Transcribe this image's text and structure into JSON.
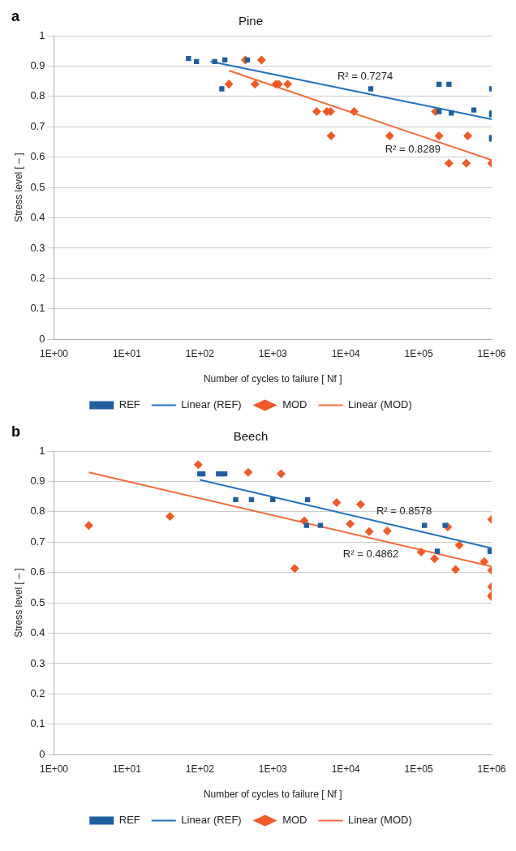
{
  "chart_data": [
    {
      "type": "scatter",
      "title": "Pine",
      "xlabel": "Number of cycles to failure [ Nf ]",
      "ylabel": "Stress level [ – ]",
      "log": "x",
      "grid": "y",
      "legend": "bottom",
      "xlim": [
        1,
        1000000
      ],
      "xticks": [
        {
          "value": 1,
          "label": "1E+00"
        },
        {
          "value": 10,
          "label": "1E+01"
        },
        {
          "value": 100,
          "label": "1E+02"
        },
        {
          "value": 1000,
          "label": "1E+03"
        },
        {
          "value": 10000,
          "label": "1E+04"
        },
        {
          "value": 100000,
          "label": "1E+05"
        },
        {
          "value": 1000000,
          "label": "1E+06"
        }
      ],
      "ylim": [
        0,
        1
      ],
      "yticks": [
        0,
        0.1,
        0.2,
        0.3,
        0.4,
        0.5,
        0.6,
        0.7,
        0.8,
        0.9,
        1
      ],
      "annotations": [
        "a",
        "R² = 0.7274",
        "R² = 0.8289"
      ],
      "series": [
        {
          "name": "REF",
          "marker": "square",
          "color": "#1f5fa0",
          "x": [
            70,
            90,
            160,
            200,
            220,
            450,
            22000,
            190000,
            260000,
            190000,
            280000,
            570000,
            1000000,
            1000000,
            1000000,
            1000000,
            1000000
          ],
          "values": [
            0.925,
            0.915,
            0.915,
            0.825,
            0.92,
            0.92,
            0.825,
            0.84,
            0.84,
            0.75,
            0.745,
            0.755,
            0.825,
            0.745,
            0.74,
            0.665,
            0.66
          ]
        },
        {
          "name": "Linear (REF)",
          "type": "line",
          "marker": "none",
          "color": "#1f6fbf",
          "x": [
            140,
            1000000
          ],
          "values": [
            0.915,
            0.725
          ]
        },
        {
          "name": "MOD",
          "marker": "diamond",
          "color": "#f05a28",
          "x": [
            250,
            420,
            570,
            700,
            1100,
            1200,
            1600,
            4000,
            5500,
            6200,
            6300,
            13000,
            40000,
            170000,
            190000,
            260000,
            450000,
            470000,
            1000000
          ],
          "values": [
            0.84,
            0.92,
            0.84,
            0.92,
            0.84,
            0.84,
            0.84,
            0.75,
            0.75,
            0.75,
            0.67,
            0.75,
            0.67,
            0.75,
            0.67,
            0.58,
            0.58,
            0.67,
            0.58
          ]
        },
        {
          "name": "Linear (MOD)",
          "type": "line",
          "marker": "none",
          "color": "#f26b3a",
          "x": [
            250,
            1000000
          ],
          "values": [
            0.885,
            0.59
          ]
        }
      ]
    },
    {
      "type": "scatter",
      "title": "Beech",
      "xlabel": "Number of cycles to failure [ Nf ]",
      "ylabel": "Stress level [ – ]",
      "log": "x",
      "grid": "y",
      "legend": "bottom",
      "xlim": [
        1,
        1000000
      ],
      "xticks": [
        {
          "value": 1,
          "label": "1E+00"
        },
        {
          "value": 10,
          "label": "1E+01"
        },
        {
          "value": 100,
          "label": "1E+02"
        },
        {
          "value": 1000,
          "label": "1E+03"
        },
        {
          "value": 10000,
          "label": "1E+04"
        },
        {
          "value": 100000,
          "label": "1E+05"
        },
        {
          "value": 1000000,
          "label": "1E+06"
        }
      ],
      "ylim": [
        0,
        1
      ],
      "yticks": [
        0,
        0.1,
        0.2,
        0.3,
        0.4,
        0.5,
        0.6,
        0.7,
        0.8,
        0.9,
        1
      ],
      "annotations": [
        "b",
        "R² = 0.8578",
        "R² = 0.4862"
      ],
      "series": [
        {
          "name": "REF",
          "marker": "square",
          "color": "#1f5fa0",
          "x": [
            100,
            110,
            180,
            200,
            220,
            310,
            510,
            1000,
            3000,
            2900,
            4500,
            120000,
            230000,
            180000,
            950000,
            1000000
          ],
          "values": [
            0.925,
            0.925,
            0.925,
            0.925,
            0.925,
            0.84,
            0.84,
            0.84,
            0.84,
            0.755,
            0.755,
            0.755,
            0.755,
            0.67,
            0.67,
            0.67
          ]
        },
        {
          "name": "Linear (REF)",
          "type": "line",
          "marker": "none",
          "color": "#1f6fbf",
          "x": [
            100,
            1000000
          ],
          "values": [
            0.905,
            0.68
          ]
        },
        {
          "name": "MOD",
          "marker": "diamond",
          "color": "#f05a28",
          "x": [
            3,
            39,
            95,
            460,
            1300,
            2700,
            2000,
            7500,
            16000,
            11500,
            21000,
            37000,
            108000,
            165000,
            250000,
            320000,
            360000,
            790000,
            1000000,
            1000000,
            1000000,
            1000000,
            1000000
          ],
          "values": [
            0.755,
            0.785,
            0.955,
            0.93,
            0.925,
            0.77,
            0.613,
            0.83,
            0.824,
            0.76,
            0.735,
            0.737,
            0.667,
            0.645,
            0.75,
            0.61,
            0.69,
            0.636,
            0.775,
            0.607,
            0.553,
            0.525,
            0.52
          ]
        },
        {
          "name": "Linear (MOD)",
          "type": "line",
          "marker": "none",
          "color": "#f26b3a",
          "x": [
            3,
            1000000
          ],
          "values": [
            0.93,
            0.62
          ]
        }
      ]
    }
  ]
}
